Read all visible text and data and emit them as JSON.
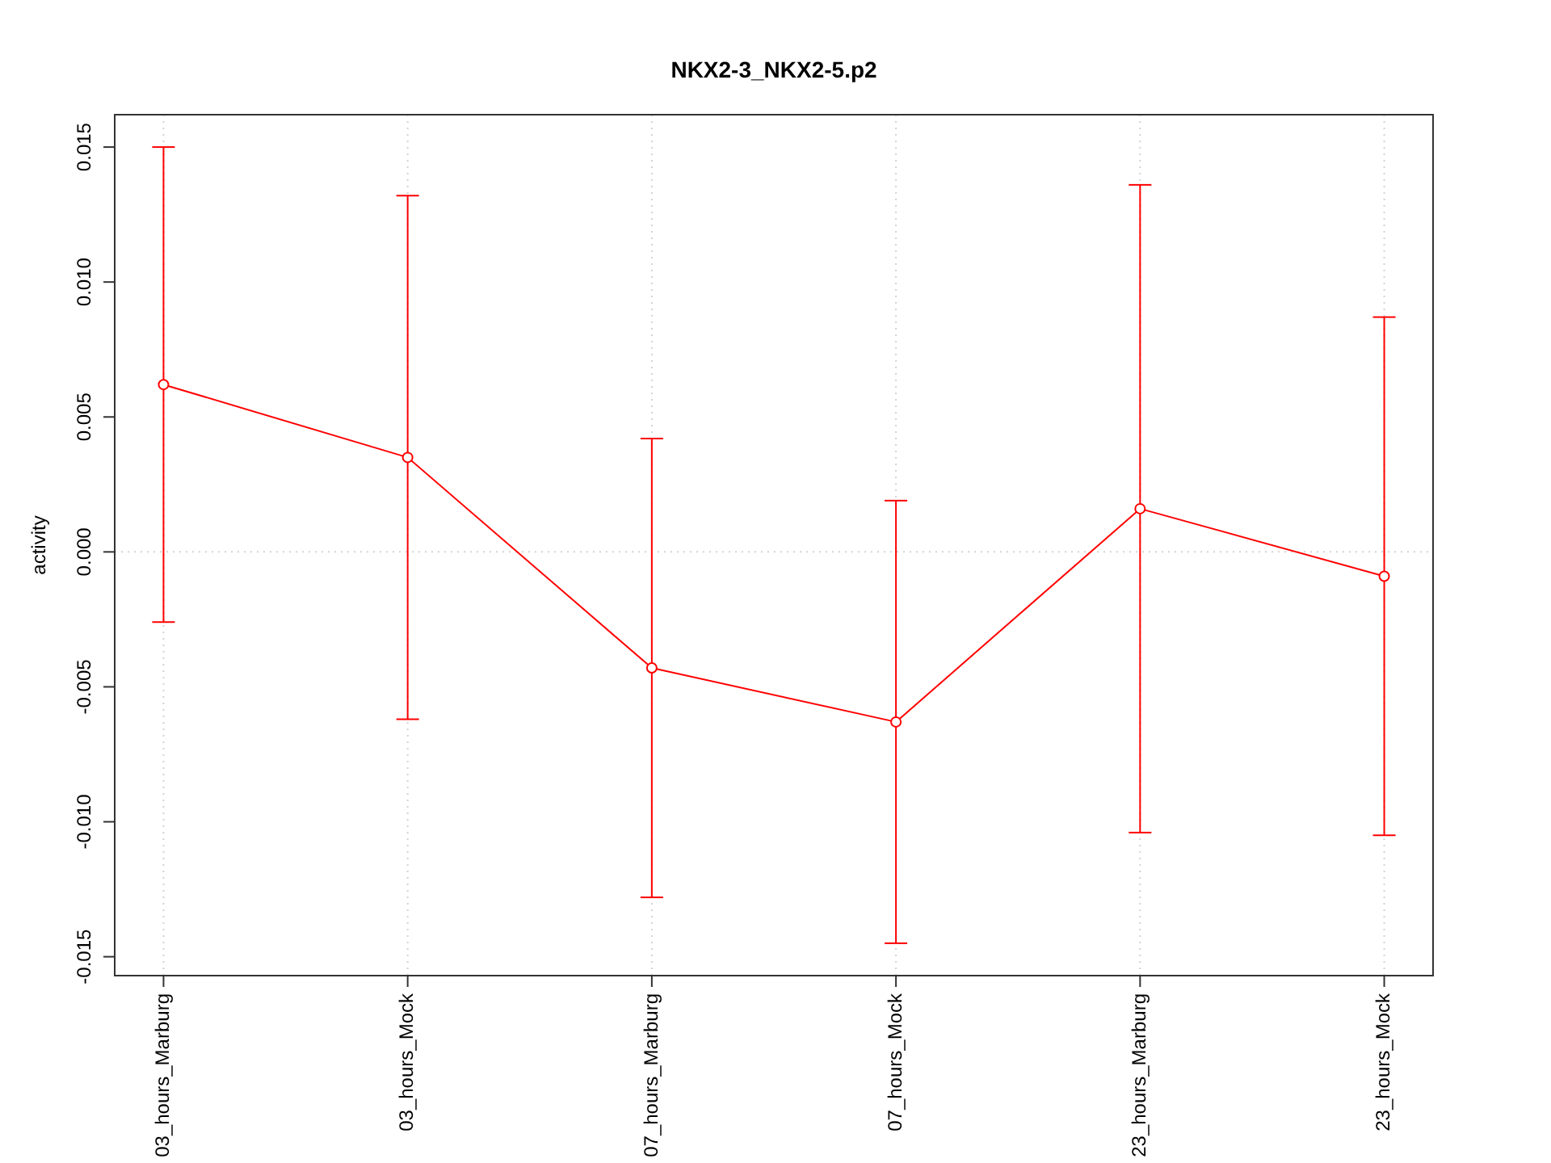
{
  "chart_data": {
    "type": "line",
    "title": "NKX2-3_NKX2-5.p2",
    "ylabel": "activity",
    "categories": [
      "03_hours_Marburg",
      "03_hours_Mock",
      "07_hours_Marburg",
      "07_hours_Mock",
      "23_hours_Marburg",
      "23_hours_Mock"
    ],
    "series": [
      {
        "color": "#ff0000",
        "values": [
          0.0062,
          0.0035,
          -0.0043,
          -0.0063,
          0.0016,
          -0.0009
        ],
        "errors": [
          0.0088,
          0.0097,
          0.0085,
          0.0082,
          0.012,
          0.0096
        ]
      }
    ],
    "ylim": [
      -0.0157,
      0.0162
    ],
    "yticks": [
      -0.015,
      {
        "value": -0.01,
        "label": "-0.010"
      },
      -0.005,
      {
        "value": 0,
        "label": "0.000"
      },
      0.005,
      {
        "value": 0.01,
        "label": "0.010"
      },
      0.015
    ],
    "grid": "x",
    "marker": "circle",
    "line_style": "solid",
    "ref_lines": [
      {
        "axis": "y",
        "value": 0,
        "color": "#d3d3d3",
        "line_style": "dotted"
      }
    ]
  }
}
